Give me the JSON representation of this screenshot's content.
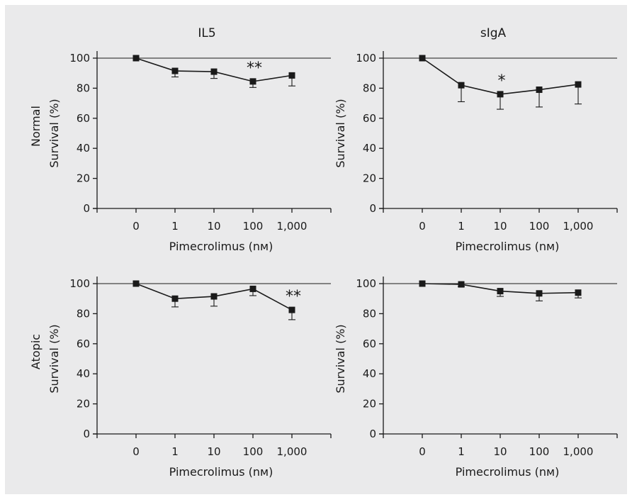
{
  "colors": {
    "panel_background": "#eaeaeb",
    "ink": "#1a1a1a"
  },
  "chart_data": [
    {
      "type": "line",
      "title": "IL5",
      "row_label": "Normal",
      "xlabel": "Pimecrolimus (nM)",
      "ylabel": "Survival (%)",
      "categories": [
        "0",
        "1",
        "10",
        "100",
        "1,000"
      ],
      "ylim": [
        0,
        100
      ],
      "yticks": [
        "0",
        "20",
        "40",
        "60",
        "80",
        "100"
      ],
      "reference_line": 100,
      "values": [
        100,
        91.5,
        91,
        84.5,
        88.5
      ],
      "error_lower": [
        0,
        4,
        4.5,
        4,
        7
      ],
      "significance": [
        {
          "category": "100",
          "label": "**"
        }
      ]
    },
    {
      "type": "line",
      "title": "sIgA",
      "row_label": "",
      "xlabel": "Pimecrolimus (nM)",
      "ylabel": "Survival (%)",
      "categories": [
        "0",
        "1",
        "10",
        "100",
        "1,000"
      ],
      "ylim": [
        0,
        100
      ],
      "yticks": [
        "0",
        "20",
        "40",
        "60",
        "80",
        "100"
      ],
      "reference_line": 100,
      "values": [
        100,
        82,
        76,
        79,
        82.5
      ],
      "error_lower": [
        0,
        11,
        10,
        11.5,
        13
      ],
      "significance": [
        {
          "category": "10",
          "label": "*"
        }
      ]
    },
    {
      "type": "line",
      "title": "",
      "row_label": "Atopic",
      "xlabel": "Pimecrolimus (nM)",
      "ylabel": "Survival (%)",
      "categories": [
        "0",
        "1",
        "10",
        "100",
        "1,000"
      ],
      "ylim": [
        0,
        100
      ],
      "yticks": [
        "0",
        "20",
        "40",
        "60",
        "80",
        "100"
      ],
      "reference_line": 100,
      "values": [
        100,
        90,
        91.5,
        96.5,
        82.5
      ],
      "error_lower": [
        0,
        5.5,
        6.5,
        4.5,
        6.5
      ],
      "significance": [
        {
          "category": "1,000",
          "label": "**"
        }
      ]
    },
    {
      "type": "line",
      "title": "",
      "row_label": "",
      "xlabel": "Pimecrolimus (nM)",
      "ylabel": "Survival (%)",
      "categories": [
        "0",
        "1",
        "10",
        "100",
        "1,000"
      ],
      "ylim": [
        0,
        100
      ],
      "yticks": [
        "0",
        "20",
        "40",
        "60",
        "80",
        "100"
      ],
      "reference_line": 100,
      "values": [
        100,
        99.5,
        95,
        93.5,
        94
      ],
      "error_lower": [
        0,
        1.5,
        3.5,
        5,
        3.5
      ],
      "significance": []
    }
  ]
}
